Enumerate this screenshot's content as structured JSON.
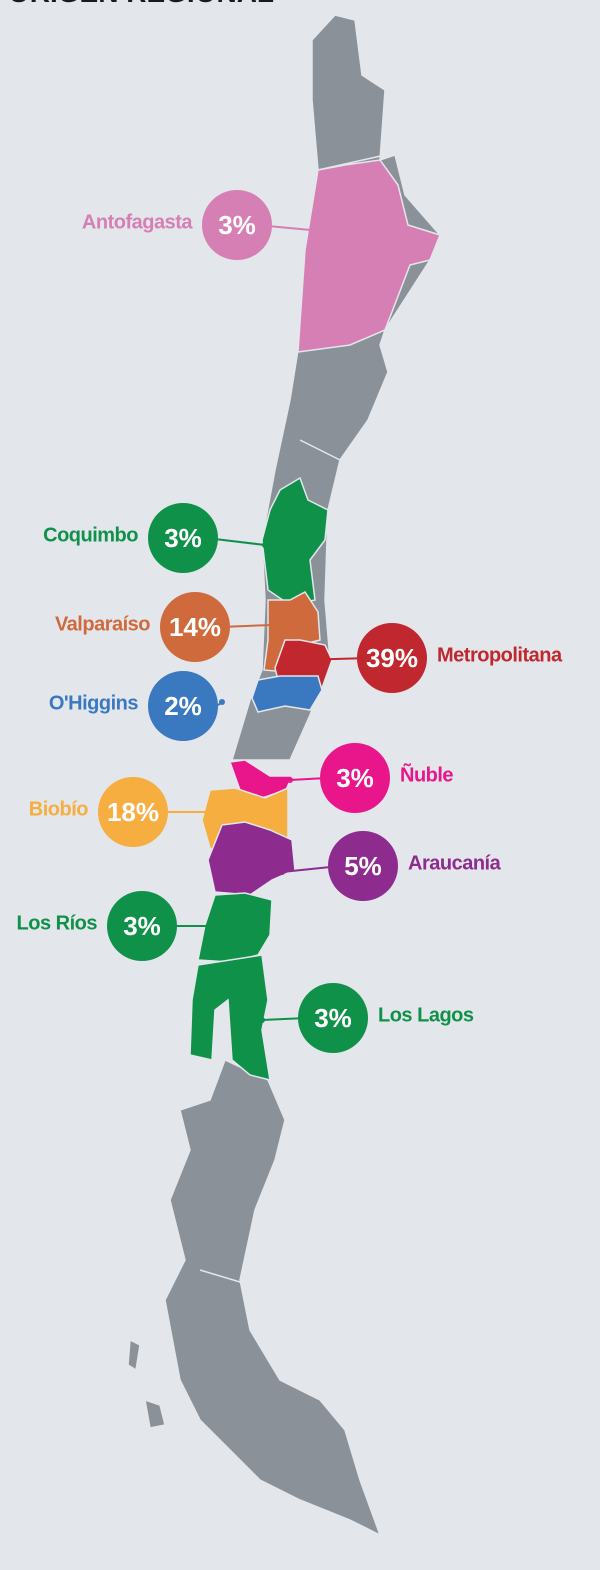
{
  "title": "ORIGEN REGIONAL",
  "regions": [
    {
      "name": "Antofagasta",
      "value": 3,
      "value_label": "3%",
      "color": "#d67fb5"
    },
    {
      "name": "Coquimbo",
      "value": 3,
      "value_label": "3%",
      "color": "#10914a"
    },
    {
      "name": "Valparaíso",
      "value": 14,
      "value_label": "14%",
      "color": "#cf6a3c"
    },
    {
      "name": "Metropolitana",
      "value": 39,
      "value_label": "39%",
      "color": "#c0272f"
    },
    {
      "name": "O'Higgins",
      "value": 2,
      "value_label": "2%",
      "color": "#3a78c0"
    },
    {
      "name": "Ñuble",
      "value": 3,
      "value_label": "3%",
      "color": "#e8168a"
    },
    {
      "name": "Biobío",
      "value": 18,
      "value_label": "18%",
      "color": "#f5ae3f"
    },
    {
      "name": "Araucanía",
      "value": 5,
      "value_label": "5%",
      "color": "#8d2c8e"
    },
    {
      "name": "Los Ríos",
      "value": 3,
      "value_label": "3%",
      "color": "#10914a"
    },
    {
      "name": "Los Lagos",
      "value": 3,
      "value_label": "3%",
      "color": "#10914a"
    }
  ]
}
